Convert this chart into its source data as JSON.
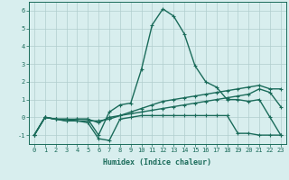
{
  "xlabel": "Humidex (Indice chaleur)",
  "x": [
    0,
    1,
    2,
    3,
    4,
    5,
    6,
    7,
    8,
    9,
    10,
    11,
    12,
    13,
    14,
    15,
    16,
    17,
    18,
    19,
    20,
    21,
    22,
    23
  ],
  "line1": [
    -1,
    0,
    -0.1,
    -0.2,
    -0.1,
    -0.1,
    -1.0,
    0.3,
    0.7,
    0.8,
    2.7,
    5.2,
    6.1,
    5.7,
    4.7,
    2.9,
    2.0,
    1.7,
    1.0,
    1.0,
    0.9,
    1.0,
    0.0,
    -1.0
  ],
  "line2": [
    -1,
    0,
    -0.1,
    -0.2,
    -0.2,
    -0.3,
    -1.2,
    -1.3,
    -0.1,
    0.0,
    0.1,
    0.1,
    0.1,
    0.1,
    0.1,
    0.1,
    0.1,
    0.1,
    0.1,
    -0.9,
    -0.9,
    -1.0,
    -1.0,
    -1.0
  ],
  "line3": [
    -1,
    0,
    -0.1,
    -0.1,
    -0.1,
    -0.1,
    -0.3,
    0.0,
    0.1,
    0.3,
    0.5,
    0.7,
    0.9,
    1.0,
    1.1,
    1.2,
    1.3,
    1.4,
    1.5,
    1.6,
    1.7,
    1.8,
    1.6,
    1.6
  ],
  "line4": [
    -1,
    0,
    -0.1,
    -0.1,
    -0.2,
    -0.2,
    -0.2,
    -0.1,
    0.1,
    0.2,
    0.3,
    0.4,
    0.5,
    0.6,
    0.7,
    0.8,
    0.9,
    1.0,
    1.1,
    1.2,
    1.3,
    1.6,
    1.4,
    0.6
  ],
  "line_color": "#1a6b5a",
  "bg_color": "#d8eeee",
  "grid_color": "#b0cece",
  "ylim": [
    -1.5,
    6.5
  ],
  "yticks": [
    -1,
    0,
    1,
    2,
    3,
    4,
    5,
    6
  ],
  "xticks": [
    0,
    1,
    2,
    3,
    4,
    5,
    6,
    7,
    8,
    9,
    10,
    11,
    12,
    13,
    14,
    15,
    16,
    17,
    18,
    19,
    20,
    21,
    22,
    23
  ]
}
